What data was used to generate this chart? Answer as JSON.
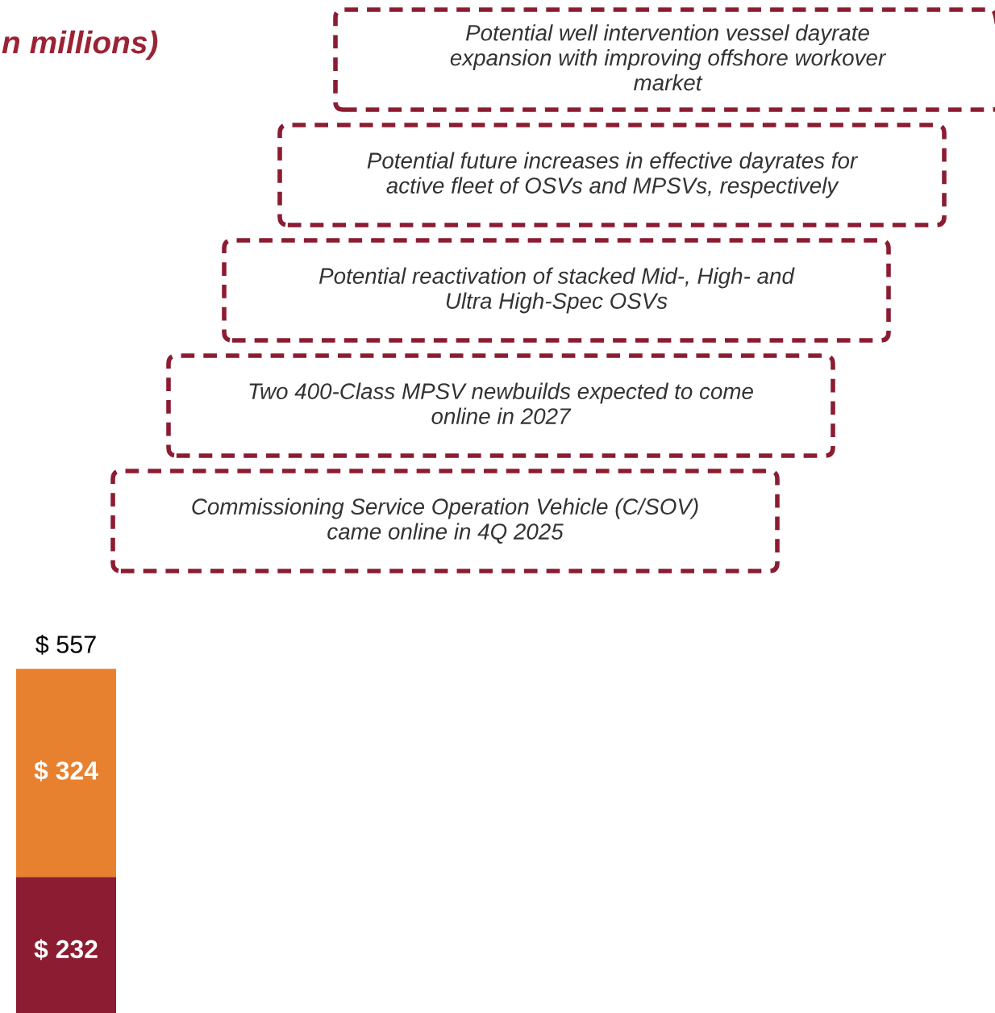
{
  "chart_data": {
    "type": "bar",
    "title": "n millions)",
    "categories": [
      null
    ],
    "stacked": true,
    "series": [
      {
        "color": "#8b1c32",
        "values": [
          232
        ],
        "value_labels": [
          "$ 232"
        ]
      },
      {
        "color": "#e8812f",
        "values": [
          324
        ],
        "value_labels": [
          "$ 324"
        ]
      }
    ],
    "totals": [
      "$ 557"
    ],
    "annotations": [
      "Potential well intervention vessel dayrate\nexpansion with improving offshore workover\nmarket",
      "Potential future increases in effective dayrates for\nactive fleet of OSVs and MPSVs, respectively",
      "Potential reactivation of stacked Mid-, High- and\nUltra High-Spec OSVs",
      "Two 400-Class MPSV newbuilds expected to come\nonline in 2027",
      "Commissioning Service Operation Vehicle (C/SOV)\ncame online in 4Q 2025"
    ]
  }
}
